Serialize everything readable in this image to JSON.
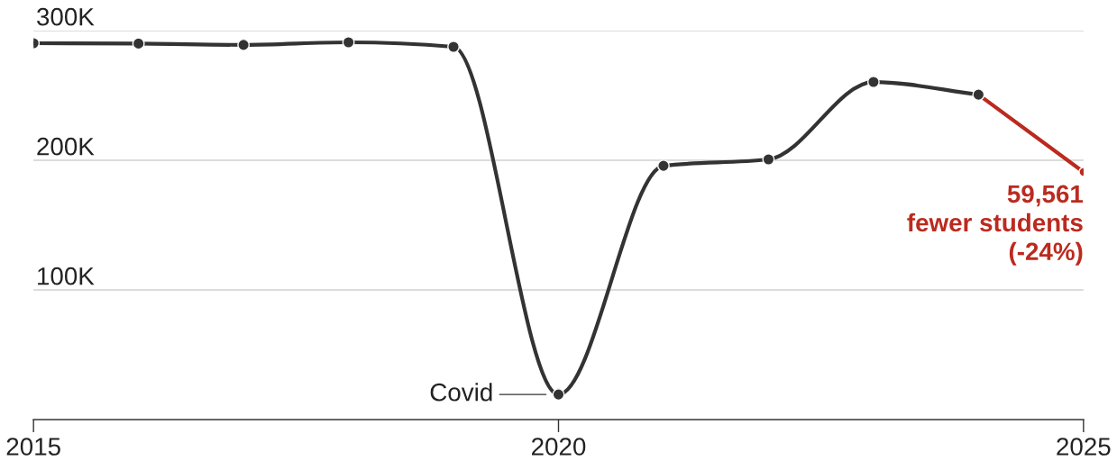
{
  "chart_data": {
    "type": "line",
    "series": [
      {
        "color": "#333333",
        "x": [
          2015,
          2016,
          2017,
          2018,
          2019,
          2020,
          2021,
          2022,
          2023,
          2024
        ],
        "values": [
          290.3,
          290.0,
          289.0,
          291.0,
          287.5,
          19.4,
          195.8,
          200.7,
          260.4,
          250.6
        ]
      },
      {
        "color": "#bb2a1f",
        "x": [
          2024,
          2025
        ],
        "values": [
          250.6,
          191.0
        ]
      }
    ],
    "xlim": [
      2015,
      2025
    ],
    "xticks": [
      2015,
      2020,
      2025
    ],
    "ylim": [
      0,
      300
    ],
    "yticks": [
      {
        "value": 100,
        "label": "100K"
      },
      {
        "value": 200,
        "label": "200K"
      },
      {
        "value": 300,
        "label": "300K"
      }
    ],
    "grid": "y",
    "marker": "circle",
    "line_style": "solid",
    "annotations": [
      {
        "text": "Covid",
        "x": 2020,
        "y": 19.4
      },
      {
        "text": "59,561\nfewer students\n(-24%)",
        "x": 2025,
        "y": 191.0
      }
    ]
  }
}
